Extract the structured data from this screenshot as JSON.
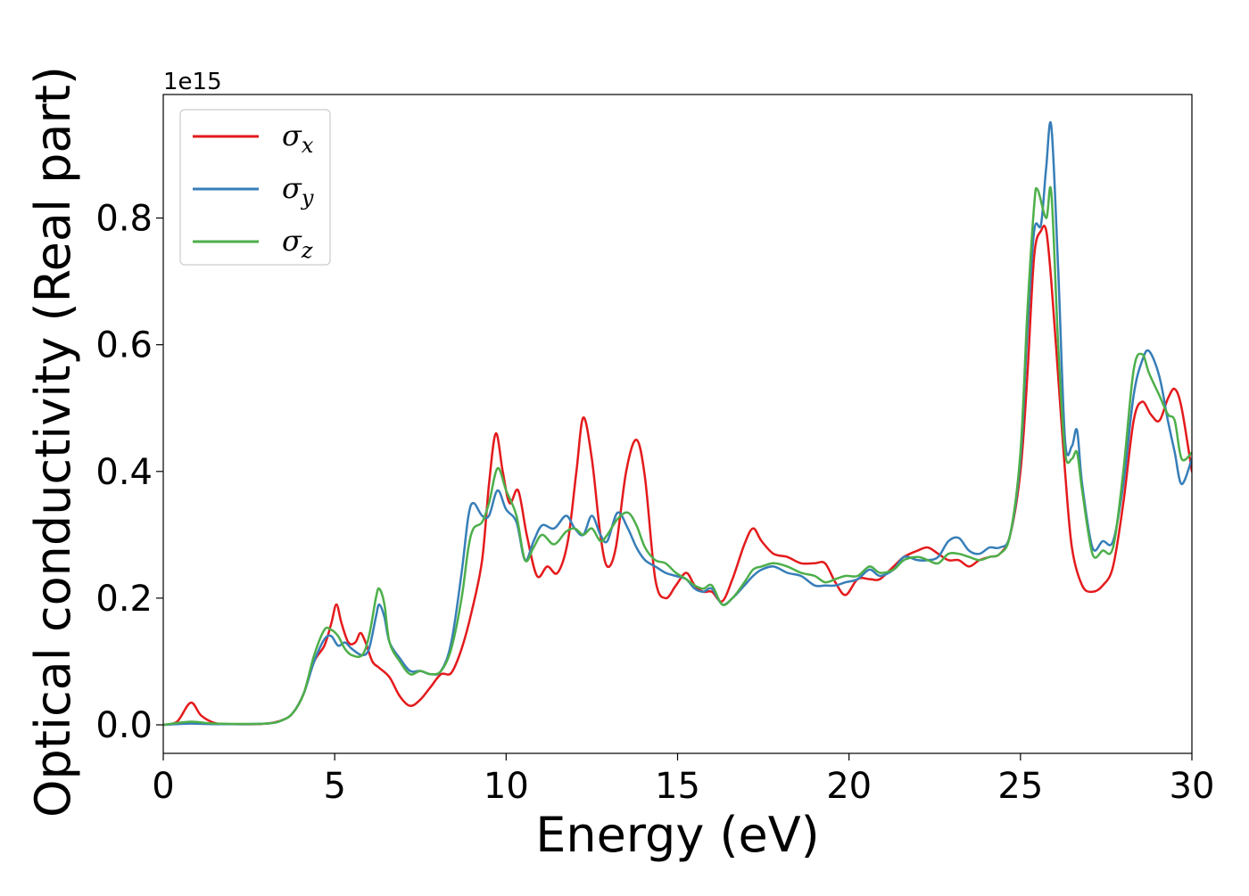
{
  "chart_data": {
    "type": "line",
    "title": "",
    "xlabel": "Energy (eV)",
    "ylabel": "Optical conductivity (Real part)",
    "y_offset_text": "1e15",
    "xlim": [
      0,
      30
    ],
    "ylim": [
      -0.045,
      0.995
    ],
    "x_ticks": [
      0,
      5,
      10,
      15,
      20,
      25,
      30
    ],
    "x_tick_labels": [
      "0",
      "5",
      "10",
      "15",
      "20",
      "25",
      "30"
    ],
    "y_ticks": [
      0.0,
      0.2,
      0.4,
      0.6,
      0.8
    ],
    "y_tick_labels": [
      "0.0",
      "0.2",
      "0.4",
      "0.6",
      "0.8"
    ],
    "grid": false,
    "legend_position": "top-left",
    "series": [
      {
        "name": "σx",
        "symbol": "σ",
        "subscript": "x",
        "color": "#e41a1c",
        "points": [
          [
            0,
            0
          ],
          [
            0.4,
            0.005
          ],
          [
            0.8,
            0.035
          ],
          [
            1.1,
            0.015
          ],
          [
            1.5,
            0.003
          ],
          [
            2,
            0.001
          ],
          [
            3,
            0.002
          ],
          [
            3.5,
            0.008
          ],
          [
            3.8,
            0.02
          ],
          [
            4.1,
            0.05
          ],
          [
            4.4,
            0.1
          ],
          [
            4.7,
            0.125
          ],
          [
            4.9,
            0.16
          ],
          [
            5.05,
            0.19
          ],
          [
            5.2,
            0.16
          ],
          [
            5.4,
            0.13
          ],
          [
            5.6,
            0.13
          ],
          [
            5.75,
            0.145
          ],
          [
            5.9,
            0.13
          ],
          [
            6.1,
            0.1
          ],
          [
            6.3,
            0.09
          ],
          [
            6.6,
            0.075
          ],
          [
            6.9,
            0.045
          ],
          [
            7.2,
            0.03
          ],
          [
            7.5,
            0.04
          ],
          [
            7.8,
            0.06
          ],
          [
            8.1,
            0.08
          ],
          [
            8.4,
            0.082
          ],
          [
            8.7,
            0.12
          ],
          [
            9.0,
            0.18
          ],
          [
            9.3,
            0.26
          ],
          [
            9.5,
            0.38
          ],
          [
            9.7,
            0.46
          ],
          [
            9.9,
            0.4
          ],
          [
            10.1,
            0.35
          ],
          [
            10.35,
            0.37
          ],
          [
            10.6,
            0.3
          ],
          [
            10.9,
            0.235
          ],
          [
            11.2,
            0.25
          ],
          [
            11.5,
            0.24
          ],
          [
            11.8,
            0.29
          ],
          [
            12.05,
            0.4
          ],
          [
            12.25,
            0.485
          ],
          [
            12.5,
            0.42
          ],
          [
            12.75,
            0.3
          ],
          [
            12.95,
            0.25
          ],
          [
            13.2,
            0.28
          ],
          [
            13.5,
            0.4
          ],
          [
            13.8,
            0.45
          ],
          [
            14.05,
            0.39
          ],
          [
            14.35,
            0.23
          ],
          [
            14.65,
            0.2
          ],
          [
            14.95,
            0.22
          ],
          [
            15.25,
            0.24
          ],
          [
            15.5,
            0.22
          ],
          [
            15.75,
            0.21
          ],
          [
            16.0,
            0.21
          ],
          [
            16.3,
            0.195
          ],
          [
            16.6,
            0.23
          ],
          [
            16.95,
            0.285
          ],
          [
            17.2,
            0.31
          ],
          [
            17.45,
            0.29
          ],
          [
            17.8,
            0.27
          ],
          [
            18.2,
            0.265
          ],
          [
            18.6,
            0.255
          ],
          [
            19.0,
            0.255
          ],
          [
            19.3,
            0.255
          ],
          [
            19.6,
            0.225
          ],
          [
            19.9,
            0.205
          ],
          [
            20.25,
            0.23
          ],
          [
            20.6,
            0.23
          ],
          [
            20.9,
            0.23
          ],
          [
            21.3,
            0.25
          ],
          [
            21.6,
            0.265
          ],
          [
            22.0,
            0.275
          ],
          [
            22.3,
            0.28
          ],
          [
            22.6,
            0.27
          ],
          [
            22.9,
            0.26
          ],
          [
            23.2,
            0.26
          ],
          [
            23.5,
            0.25
          ],
          [
            23.8,
            0.26
          ],
          [
            24.1,
            0.265
          ],
          [
            24.4,
            0.27
          ],
          [
            24.7,
            0.3
          ],
          [
            25.0,
            0.4
          ],
          [
            25.2,
            0.55
          ],
          [
            25.4,
            0.74
          ],
          [
            25.6,
            0.78
          ],
          [
            25.75,
            0.78
          ],
          [
            25.9,
            0.7
          ],
          [
            26.1,
            0.55
          ],
          [
            26.3,
            0.4
          ],
          [
            26.5,
            0.28
          ],
          [
            26.8,
            0.22
          ],
          [
            27.1,
            0.21
          ],
          [
            27.4,
            0.22
          ],
          [
            27.7,
            0.25
          ],
          [
            28.0,
            0.35
          ],
          [
            28.3,
            0.48
          ],
          [
            28.55,
            0.51
          ],
          [
            28.8,
            0.49
          ],
          [
            29.05,
            0.48
          ],
          [
            29.3,
            0.515
          ],
          [
            29.5,
            0.53
          ],
          [
            29.7,
            0.5
          ],
          [
            30.0,
            0.4
          ]
        ]
      },
      {
        "name": "σy",
        "symbol": "σ",
        "subscript": "y",
        "color": "#377eb8",
        "points": [
          [
            0,
            0
          ],
          [
            0.8,
            0.002
          ],
          [
            1.5,
            0.001
          ],
          [
            3,
            0.002
          ],
          [
            3.5,
            0.008
          ],
          [
            3.8,
            0.02
          ],
          [
            4.1,
            0.05
          ],
          [
            4.4,
            0.1
          ],
          [
            4.7,
            0.135
          ],
          [
            4.9,
            0.14
          ],
          [
            5.1,
            0.125
          ],
          [
            5.3,
            0.13
          ],
          [
            5.5,
            0.12
          ],
          [
            5.8,
            0.11
          ],
          [
            6.0,
            0.12
          ],
          [
            6.2,
            0.17
          ],
          [
            6.3,
            0.19
          ],
          [
            6.45,
            0.17
          ],
          [
            6.6,
            0.13
          ],
          [
            6.9,
            0.105
          ],
          [
            7.2,
            0.085
          ],
          [
            7.5,
            0.085
          ],
          [
            7.8,
            0.08
          ],
          [
            8.1,
            0.085
          ],
          [
            8.4,
            0.13
          ],
          [
            8.7,
            0.24
          ],
          [
            8.9,
            0.33
          ],
          [
            9.05,
            0.35
          ],
          [
            9.3,
            0.33
          ],
          [
            9.5,
            0.33
          ],
          [
            9.75,
            0.37
          ],
          [
            10.0,
            0.34
          ],
          [
            10.3,
            0.32
          ],
          [
            10.55,
            0.26
          ],
          [
            10.8,
            0.29
          ],
          [
            11.05,
            0.315
          ],
          [
            11.4,
            0.31
          ],
          [
            11.75,
            0.33
          ],
          [
            12.0,
            0.31
          ],
          [
            12.25,
            0.3
          ],
          [
            12.5,
            0.33
          ],
          [
            12.75,
            0.3
          ],
          [
            12.95,
            0.29
          ],
          [
            13.25,
            0.335
          ],
          [
            13.55,
            0.31
          ],
          [
            13.8,
            0.28
          ],
          [
            14.05,
            0.26
          ],
          [
            14.35,
            0.25
          ],
          [
            14.65,
            0.24
          ],
          [
            14.95,
            0.235
          ],
          [
            15.25,
            0.23
          ],
          [
            15.5,
            0.215
          ],
          [
            15.75,
            0.21
          ],
          [
            16.0,
            0.215
          ],
          [
            16.3,
            0.19
          ],
          [
            16.6,
            0.2
          ],
          [
            16.95,
            0.22
          ],
          [
            17.2,
            0.235
          ],
          [
            17.45,
            0.245
          ],
          [
            17.8,
            0.25
          ],
          [
            18.2,
            0.24
          ],
          [
            18.6,
            0.235
          ],
          [
            19.0,
            0.22
          ],
          [
            19.3,
            0.22
          ],
          [
            19.6,
            0.22
          ],
          [
            19.9,
            0.225
          ],
          [
            20.25,
            0.23
          ],
          [
            20.6,
            0.245
          ],
          [
            20.9,
            0.235
          ],
          [
            21.3,
            0.245
          ],
          [
            21.6,
            0.265
          ],
          [
            22.0,
            0.26
          ],
          [
            22.3,
            0.26
          ],
          [
            22.6,
            0.265
          ],
          [
            22.9,
            0.29
          ],
          [
            23.2,
            0.295
          ],
          [
            23.5,
            0.275
          ],
          [
            23.8,
            0.27
          ],
          [
            24.1,
            0.28
          ],
          [
            24.4,
            0.28
          ],
          [
            24.7,
            0.3
          ],
          [
            25.0,
            0.42
          ],
          [
            25.2,
            0.62
          ],
          [
            25.4,
            0.78
          ],
          [
            25.6,
            0.79
          ],
          [
            25.75,
            0.88
          ],
          [
            25.9,
            0.945
          ],
          [
            26.1,
            0.72
          ],
          [
            26.3,
            0.45
          ],
          [
            26.5,
            0.44
          ],
          [
            26.65,
            0.465
          ],
          [
            26.8,
            0.38
          ],
          [
            27.1,
            0.28
          ],
          [
            27.4,
            0.29
          ],
          [
            27.7,
            0.29
          ],
          [
            28.0,
            0.38
          ],
          [
            28.3,
            0.52
          ],
          [
            28.55,
            0.575
          ],
          [
            28.75,
            0.59
          ],
          [
            29.05,
            0.55
          ],
          [
            29.3,
            0.48
          ],
          [
            29.5,
            0.43
          ],
          [
            29.7,
            0.38
          ],
          [
            30.0,
            0.42
          ]
        ]
      },
      {
        "name": "σz",
        "symbol": "σ",
        "subscript": "z",
        "color": "#4daf4a",
        "points": [
          [
            0,
            0
          ],
          [
            0.8,
            0.005
          ],
          [
            1.5,
            0.002
          ],
          [
            3,
            0.002
          ],
          [
            3.5,
            0.008
          ],
          [
            3.8,
            0.02
          ],
          [
            4.1,
            0.05
          ],
          [
            4.4,
            0.11
          ],
          [
            4.7,
            0.15
          ],
          [
            4.9,
            0.15
          ],
          [
            5.1,
            0.14
          ],
          [
            5.3,
            0.12
          ],
          [
            5.5,
            0.11
          ],
          [
            5.8,
            0.11
          ],
          [
            6.0,
            0.14
          ],
          [
            6.2,
            0.2
          ],
          [
            6.3,
            0.215
          ],
          [
            6.45,
            0.19
          ],
          [
            6.6,
            0.13
          ],
          [
            6.9,
            0.1
          ],
          [
            7.2,
            0.08
          ],
          [
            7.5,
            0.085
          ],
          [
            7.8,
            0.08
          ],
          [
            8.1,
            0.085
          ],
          [
            8.4,
            0.12
          ],
          [
            8.7,
            0.2
          ],
          [
            8.9,
            0.28
          ],
          [
            9.05,
            0.31
          ],
          [
            9.3,
            0.32
          ],
          [
            9.5,
            0.35
          ],
          [
            9.75,
            0.405
          ],
          [
            10.0,
            0.37
          ],
          [
            10.3,
            0.33
          ],
          [
            10.55,
            0.26
          ],
          [
            10.8,
            0.28
          ],
          [
            11.05,
            0.3
          ],
          [
            11.4,
            0.285
          ],
          [
            11.75,
            0.305
          ],
          [
            12.0,
            0.31
          ],
          [
            12.25,
            0.3
          ],
          [
            12.5,
            0.31
          ],
          [
            12.75,
            0.29
          ],
          [
            12.95,
            0.3
          ],
          [
            13.25,
            0.325
          ],
          [
            13.55,
            0.335
          ],
          [
            13.8,
            0.315
          ],
          [
            14.05,
            0.28
          ],
          [
            14.35,
            0.26
          ],
          [
            14.65,
            0.255
          ],
          [
            14.95,
            0.24
          ],
          [
            15.25,
            0.23
          ],
          [
            15.5,
            0.22
          ],
          [
            15.75,
            0.215
          ],
          [
            16.0,
            0.22
          ],
          [
            16.3,
            0.19
          ],
          [
            16.6,
            0.2
          ],
          [
            16.95,
            0.225
          ],
          [
            17.2,
            0.245
          ],
          [
            17.45,
            0.25
          ],
          [
            17.8,
            0.255
          ],
          [
            18.2,
            0.25
          ],
          [
            18.6,
            0.24
          ],
          [
            19.0,
            0.235
          ],
          [
            19.3,
            0.225
          ],
          [
            19.6,
            0.23
          ],
          [
            19.9,
            0.235
          ],
          [
            20.25,
            0.235
          ],
          [
            20.6,
            0.25
          ],
          [
            20.9,
            0.24
          ],
          [
            21.3,
            0.245
          ],
          [
            21.6,
            0.26
          ],
          [
            22.0,
            0.265
          ],
          [
            22.3,
            0.26
          ],
          [
            22.6,
            0.255
          ],
          [
            22.9,
            0.27
          ],
          [
            23.2,
            0.27
          ],
          [
            23.5,
            0.265
          ],
          [
            23.8,
            0.26
          ],
          [
            24.1,
            0.265
          ],
          [
            24.4,
            0.27
          ],
          [
            24.7,
            0.3
          ],
          [
            25.0,
            0.43
          ],
          [
            25.2,
            0.65
          ],
          [
            25.4,
            0.82
          ],
          [
            25.5,
            0.845
          ],
          [
            25.75,
            0.8
          ],
          [
            25.9,
            0.84
          ],
          [
            26.1,
            0.6
          ],
          [
            26.3,
            0.43
          ],
          [
            26.5,
            0.42
          ],
          [
            26.65,
            0.43
          ],
          [
            26.8,
            0.37
          ],
          [
            27.1,
            0.27
          ],
          [
            27.4,
            0.275
          ],
          [
            27.7,
            0.28
          ],
          [
            28.0,
            0.4
          ],
          [
            28.3,
            0.56
          ],
          [
            28.55,
            0.585
          ],
          [
            28.75,
            0.555
          ],
          [
            29.05,
            0.52
          ],
          [
            29.3,
            0.49
          ],
          [
            29.5,
            0.48
          ],
          [
            29.7,
            0.42
          ],
          [
            30.0,
            0.43
          ]
        ]
      }
    ]
  }
}
